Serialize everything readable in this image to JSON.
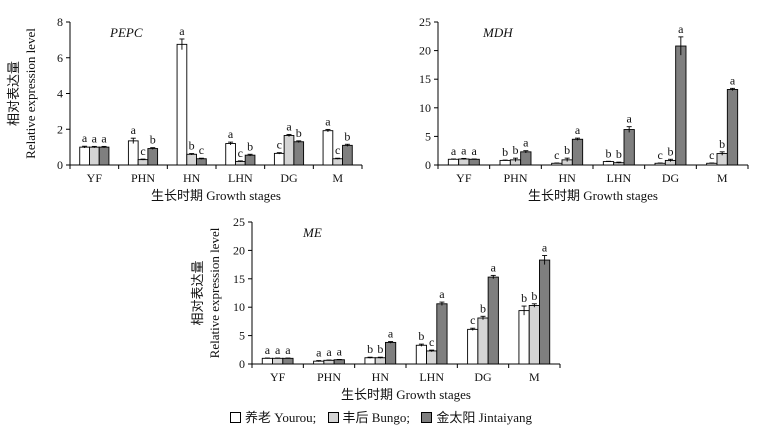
{
  "chart_data": [
    {
      "type": "bar",
      "title": "PEPC",
      "xlabel": "生长时期 Growth stages",
      "ylabel_cn": "相对表达量",
      "ylabel_en": "Relative expression level",
      "ylim": [
        0,
        8
      ],
      "yticks": [
        0,
        2,
        4,
        6,
        8
      ],
      "categories": [
        "YF",
        "PHN",
        "HN",
        "LHN",
        "DG",
        "M"
      ],
      "series": [
        {
          "values": [
            1.0,
            1.35,
            6.75,
            1.2,
            0.65,
            1.92
          ],
          "errors": [
            0.05,
            0.15,
            0.3,
            0.08,
            0.04,
            0.07
          ],
          "labels": [
            "a",
            "a",
            "a",
            "a",
            "c",
            "a"
          ]
        },
        {
          "values": [
            1.0,
            0.3,
            0.6,
            0.2,
            1.65,
            0.35
          ],
          "errors": [
            0.04,
            0.03,
            0.04,
            0.03,
            0.06,
            0.03
          ],
          "labels": [
            "a",
            "c",
            "b",
            "c",
            "a",
            "c"
          ]
        },
        {
          "values": [
            1.0,
            0.92,
            0.35,
            0.55,
            1.3,
            1.1
          ],
          "errors": [
            0.04,
            0.05,
            0.03,
            0.05,
            0.05,
            0.06
          ],
          "labels": [
            "a",
            "b",
            "c",
            "b",
            "b",
            "b"
          ]
        }
      ]
    },
    {
      "type": "bar",
      "title": "MDH",
      "xlabel": "生长时期 Growth stages",
      "ylabel_cn": "",
      "ylabel_en": "",
      "ylim": [
        0,
        25
      ],
      "yticks": [
        0,
        5,
        10,
        15,
        20,
        25
      ],
      "categories": [
        "YF",
        "PHN",
        "HN",
        "LHN",
        "DG",
        "M"
      ],
      "series": [
        {
          "values": [
            1.0,
            0.8,
            0.3,
            0.6,
            0.3,
            0.3
          ],
          "errors": [
            0.05,
            0.06,
            0.05,
            0.05,
            0.05,
            0.05
          ],
          "labels": [
            "a",
            "b",
            "c",
            "b",
            "c",
            "c"
          ]
        },
        {
          "values": [
            1.05,
            0.9,
            0.9,
            0.4,
            0.8,
            2.0
          ],
          "errors": [
            0.1,
            0.3,
            0.3,
            0.1,
            0.2,
            0.3
          ],
          "labels": [
            "a",
            "b",
            "b",
            "b",
            "b",
            "b"
          ]
        },
        {
          "values": [
            1.0,
            2.3,
            4.5,
            6.2,
            20.8,
            13.2
          ],
          "errors": [
            0.05,
            0.2,
            0.2,
            0.5,
            1.6,
            0.2
          ],
          "labels": [
            "a",
            "a",
            "a",
            "a",
            "a",
            "a"
          ]
        }
      ]
    },
    {
      "type": "bar",
      "title": "ME",
      "xlabel": "生长时期 Growth stages",
      "ylabel_cn": "相对表达量",
      "ylabel_en": "Relative expression level",
      "ylim": [
        0,
        25
      ],
      "yticks": [
        0,
        5,
        10,
        15,
        20,
        25
      ],
      "categories": [
        "YF",
        "PHN",
        "HN",
        "LHN",
        "DG",
        "M"
      ],
      "series": [
        {
          "values": [
            1.0,
            0.5,
            1.1,
            3.3,
            6.1,
            9.4
          ],
          "errors": [
            0.05,
            0.1,
            0.1,
            0.2,
            0.2,
            0.8
          ],
          "labels": [
            "a",
            "a",
            "b",
            "b",
            "c",
            "b"
          ]
        },
        {
          "values": [
            1.0,
            0.65,
            1.1,
            2.3,
            8.1,
            10.3
          ],
          "errors": [
            0.05,
            0.05,
            0.1,
            0.15,
            0.3,
            0.3
          ],
          "labels": [
            "a",
            "a",
            "b",
            "c",
            "b",
            "b"
          ]
        },
        {
          "values": [
            1.0,
            0.75,
            3.8,
            10.6,
            15.3,
            18.3
          ],
          "errors": [
            0.05,
            0.05,
            0.15,
            0.3,
            0.3,
            0.8
          ],
          "labels": [
            "a",
            "a",
            "a",
            "a",
            "a",
            "a"
          ]
        }
      ]
    }
  ],
  "legend": [
    {
      "label": "养老 Yourou;",
      "color": "#ffffff"
    },
    {
      "label": "丰后 Bungo;",
      "color": "#d4d4d4"
    },
    {
      "label": "金太阳 Jintaiyang",
      "color": "#7f7f7f"
    }
  ],
  "series_colors": [
    "#ffffff",
    "#d4d4d4",
    "#7f7f7f"
  ]
}
